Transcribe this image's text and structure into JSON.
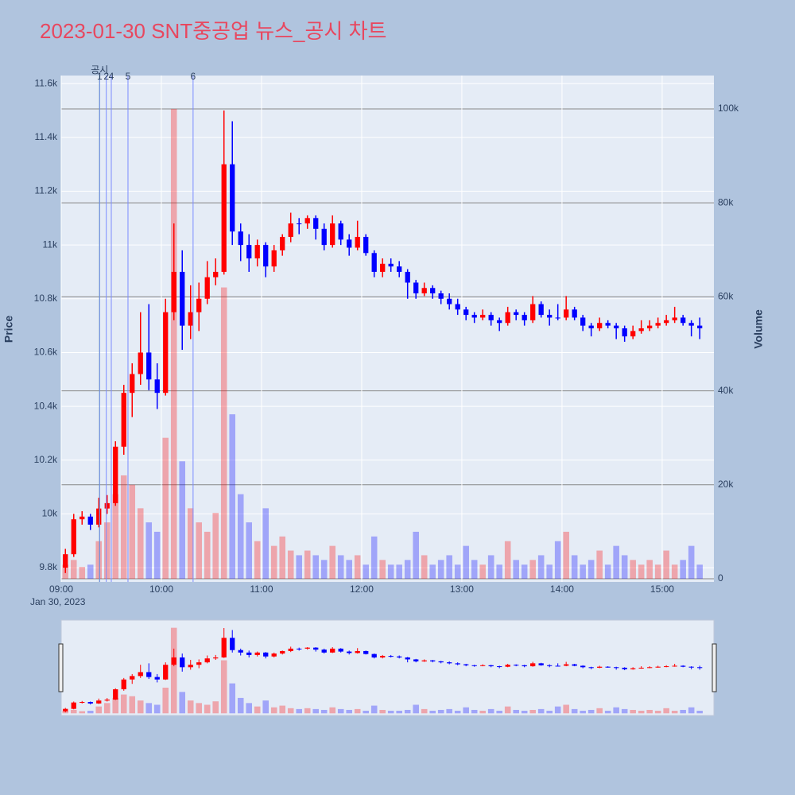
{
  "chart_data": {
    "type": "candlestick",
    "title": "2023-01-30 SNT중공업 뉴스_공시 차트",
    "y_title": "Price",
    "y2_title": "Volume",
    "x_date_label": "Jan 30, 2023",
    "x": [
      "09:00",
      "09:05",
      "09:10",
      "09:15",
      "09:20",
      "09:25",
      "09:30",
      "09:35",
      "09:40",
      "09:45",
      "09:50",
      "09:55",
      "10:00",
      "10:05",
      "10:10",
      "10:15",
      "10:20",
      "10:25",
      "10:30",
      "10:35",
      "10:40",
      "10:45",
      "10:50",
      "10:55",
      "11:00",
      "11:05",
      "11:10",
      "11:15",
      "11:20",
      "11:25",
      "11:30",
      "11:35",
      "11:40",
      "11:45",
      "11:50",
      "11:55",
      "12:00",
      "12:05",
      "12:10",
      "12:15",
      "12:20",
      "12:25",
      "12:30",
      "12:35",
      "12:40",
      "12:45",
      "12:50",
      "12:55",
      "13:00",
      "13:05",
      "13:10",
      "13:15",
      "13:20",
      "13:25",
      "13:30",
      "13:35",
      "13:40",
      "13:45",
      "13:50",
      "13:55",
      "14:00",
      "14:05",
      "14:10",
      "14:15",
      "14:20",
      "14:25",
      "14:30",
      "14:35",
      "14:40",
      "14:45",
      "14:50",
      "14:55",
      "15:00",
      "15:05",
      "15:10",
      "15:15",
      "15:20"
    ],
    "open": [
      9800,
      9850,
      9980,
      9990,
      9960,
      10020,
      10040,
      10250,
      10450,
      10520,
      10600,
      10500,
      10450,
      10750,
      10900,
      10700,
      10750,
      10800,
      10880,
      10900,
      11300,
      11050,
      11000,
      10950,
      11000,
      10920,
      10980,
      11030,
      11080,
      11080,
      11100,
      11060,
      11000,
      11080,
      11020,
      10990,
      11030,
      10970,
      10900,
      10930,
      10920,
      10900,
      10860,
      10820,
      10840,
      10820,
      10800,
      10780,
      10760,
      10740,
      10730,
      10740,
      10720,
      10710,
      10750,
      10740,
      10720,
      10780,
      10740,
      10730,
      10730,
      10760,
      10730,
      10700,
      10690,
      10710,
      10700,
      10690,
      10660,
      10680,
      10690,
      10700,
      10710,
      10720,
      10730,
      10710,
      10700
    ],
    "high": [
      9870,
      10000,
      10010,
      10000,
      10060,
      10070,
      10270,
      10480,
      10560,
      10750,
      10780,
      10560,
      10800,
      11080,
      10980,
      10850,
      10860,
      10940,
      10950,
      11500,
      11460,
      11080,
      11040,
      11020,
      11010,
      11000,
      11040,
      11120,
      11100,
      11110,
      11110,
      11080,
      11110,
      11090,
      11040,
      11090,
      11040,
      10980,
      10950,
      10950,
      10940,
      10910,
      10870,
      10860,
      10850,
      10830,
      10820,
      10800,
      10770,
      10750,
      10760,
      10750,
      10730,
      10770,
      10760,
      10750,
      10810,
      10790,
      10760,
      10780,
      10810,
      10770,
      10740,
      10710,
      10730,
      10720,
      10710,
      10700,
      10700,
      10720,
      10720,
      10730,
      10740,
      10770,
      10740,
      10720,
      10730
    ],
    "low": [
      9780,
      9840,
      9960,
      9940,
      9950,
      10000,
      10030,
      10220,
      10360,
      10480,
      10460,
      10390,
      10440,
      10720,
      10610,
      10650,
      10680,
      10780,
      10850,
      10890,
      11000,
      10940,
      10900,
      10920,
      10880,
      10900,
      10960,
      11010,
      11040,
      11060,
      11020,
      10980,
      10990,
      11000,
      10960,
      10980,
      10960,
      10880,
      10880,
      10900,
      10880,
      10800,
      10800,
      10810,
      10800,
      10780,
      10760,
      10740,
      10720,
      10710,
      10720,
      10700,
      10680,
      10700,
      10720,
      10700,
      10710,
      10730,
      10700,
      10720,
      10720,
      10720,
      10680,
      10660,
      10680,
      10690,
      10650,
      10640,
      10650,
      10670,
      10680,
      10690,
      10700,
      10710,
      10700,
      10660,
      10650
    ],
    "close": [
      9850,
      9980,
      9990,
      9960,
      10020,
      10040,
      10250,
      10450,
      10520,
      10600,
      10500,
      10450,
      10750,
      10900,
      10700,
      10750,
      10800,
      10880,
      10900,
      11300,
      11050,
      11000,
      10950,
      11000,
      10920,
      10980,
      11030,
      11080,
      11080,
      11100,
      11060,
      11000,
      11080,
      11020,
      10990,
      11030,
      10970,
      10900,
      10930,
      10920,
      10900,
      10860,
      10820,
      10840,
      10820,
      10800,
      10780,
      10760,
      10740,
      10730,
      10740,
      10720,
      10710,
      10750,
      10740,
      10720,
      10780,
      10740,
      10730,
      10730,
      10760,
      10730,
      10700,
      10690,
      10710,
      10700,
      10690,
      10660,
      10680,
      10690,
      10700,
      10710,
      10720,
      10730,
      10710,
      10700,
      10690
    ],
    "volume": [
      3000,
      4000,
      2500,
      3000,
      8000,
      12000,
      18000,
      22000,
      20000,
      15000,
      12000,
      10000,
      30000,
      100000,
      25000,
      15000,
      12000,
      10000,
      14000,
      62000,
      35000,
      18000,
      12000,
      8000,
      15000,
      7000,
      9000,
      6000,
      5000,
      6000,
      5000,
      4000,
      7000,
      5000,
      4000,
      5000,
      3000,
      9000,
      4000,
      3000,
      3000,
      4000,
      10000,
      5000,
      3000,
      4000,
      5000,
      3000,
      7000,
      4000,
      3000,
      5000,
      3000,
      8000,
      4000,
      3000,
      4000,
      5000,
      3000,
      8000,
      10000,
      5000,
      3000,
      4000,
      6000,
      3000,
      7000,
      5000,
      4000,
      3000,
      4000,
      3000,
      6000,
      3000,
      4000,
      7000,
      3000
    ],
    "increasing_color": "#ff0000",
    "decreasing_color": "#0000ff",
    "xlim": [
      "09:00",
      "15:31"
    ],
    "xticks": [
      "09:00",
      "10:00",
      "11:00",
      "12:00",
      "13:00",
      "14:00",
      "15:00"
    ],
    "ylim": [
      9747,
      11630
    ],
    "yticks": [
      {
        "value": 9800,
        "label": "9.8k"
      },
      {
        "value": 10000,
        "label": "10k"
      },
      {
        "value": 10200,
        "label": "10.2k"
      },
      {
        "value": 10400,
        "label": "10.4k"
      },
      {
        "value": 10600,
        "label": "10.6k"
      },
      {
        "value": 10800,
        "label": "10.8k"
      },
      {
        "value": 11000,
        "label": "11k"
      },
      {
        "value": 11200,
        "label": "11.2k"
      },
      {
        "value": 11400,
        "label": "11.4k"
      },
      {
        "value": 11600,
        "label": "11.6k"
      }
    ],
    "y2lim": [
      -677,
      107100
    ],
    "y2ticks": [
      0,
      {
        "value": 20000,
        "label": "20k"
      },
      {
        "value": 40000,
        "label": "40k"
      },
      {
        "value": 60000,
        "label": "60k"
      },
      {
        "value": 80000,
        "label": "80k"
      },
      {
        "value": 100000,
        "label": "100k"
      }
    ],
    "grid": true,
    "events": [
      {
        "time": "09:23",
        "label": "공시",
        "color": "#2ca02c"
      },
      {
        "time": "09:23",
        "label": "1",
        "color": "#7b8cff"
      },
      {
        "time": "09:27",
        "label": "2",
        "color": "#7b8cff"
      },
      {
        "time": "09:30",
        "label": "4",
        "color": "#7b8cff"
      },
      {
        "time": "09:40",
        "label": "5",
        "color": "#7b8cff"
      },
      {
        "time": "10:19",
        "label": "6",
        "color": "#7b8cff"
      }
    ]
  }
}
